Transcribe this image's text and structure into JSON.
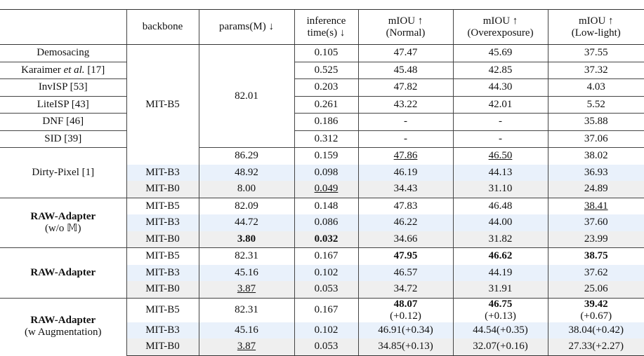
{
  "table": {
    "header": {
      "backbone": "backbone",
      "params": "params(M) ↓",
      "time": [
        "inference",
        "time(s) ↓"
      ],
      "normal": [
        "mIOU ↑",
        "(Normal)"
      ],
      "over": [
        "mIOU ↑",
        "(Overexposure)"
      ],
      "low": [
        "mIOU ↑",
        "(Low-light)"
      ]
    },
    "rows": [
      {
        "method": "Demosacing",
        "backbone": "MIT-B5",
        "params": "82.01",
        "time": "0.105",
        "normal": "47.47",
        "over": "45.69",
        "low": "37.55"
      },
      {
        "method": [
          "Karaimer ",
          "et al.",
          " [17]"
        ],
        "time": "0.525",
        "normal": "45.48",
        "over": "42.85",
        "low": "37.32"
      },
      {
        "method": "InvISP [53]",
        "time": "0.203",
        "normal": "47.82",
        "over": "44.30",
        "low": "4.03"
      },
      {
        "method": "LiteISP [43]",
        "time": "0.261",
        "normal": "43.22",
        "over": "42.01",
        "low": "5.52"
      },
      {
        "method": "DNF [46]",
        "time": "0.186",
        "normal": "-",
        "over": "-",
        "low": "35.88"
      },
      {
        "method": "SID [39]",
        "time": "0.312",
        "normal": "-",
        "over": "-",
        "low": "37.06"
      },
      {
        "method": "Dirty-Pixel [1]",
        "params": "86.29",
        "time": "0.159",
        "normal": "47.86",
        "over": "46.50",
        "low": "38.02"
      },
      {
        "backbone": "MIT-B3",
        "params": "48.92",
        "time": "0.098",
        "normal": "46.19",
        "over": "44.13",
        "low": "36.93"
      },
      {
        "backbone": "MIT-B0",
        "params": "8.00",
        "time": "0.049",
        "normal": "34.43",
        "over": "31.10",
        "low": "24.89"
      },
      {
        "method": [
          "RAW-Adapter",
          "(w/o 𝕄)"
        ],
        "backbone": "MIT-B5",
        "params": "82.09",
        "time": "0.148",
        "normal": "47.83",
        "over": "46.48",
        "low": "38.41"
      },
      {
        "backbone": "MIT-B3",
        "params": "44.72",
        "time": "0.086",
        "normal": "46.22",
        "over": "44.00",
        "low": "37.60"
      },
      {
        "backbone": "MIT-B0",
        "params": "3.80",
        "time": "0.032",
        "normal": "34.66",
        "over": "31.82",
        "low": "23.99"
      },
      {
        "method": "RAW-Adapter",
        "backbone": "MIT-B5",
        "params": "82.31",
        "time": "0.167",
        "normal": "47.95",
        "over": "46.62",
        "low": "38.75"
      },
      {
        "backbone": "MIT-B3",
        "params": "45.16",
        "time": "0.102",
        "normal": "46.57",
        "over": "44.19",
        "low": "37.62"
      },
      {
        "backbone": "MIT-B0",
        "params": "3.87",
        "time": "0.053",
        "normal": "34.72",
        "over": "31.91",
        "low": "25.06"
      },
      {
        "method": [
          "RAW-Adapter",
          "(w Augmentation)"
        ],
        "backbone": "MIT-B5",
        "params": "82.31",
        "time": "0.167",
        "normal": [
          "48.07",
          "(+0.12)"
        ],
        "over": [
          "46.75",
          "(+0.13)"
        ],
        "low": [
          "39.42",
          "(+0.67)"
        ]
      },
      {
        "backbone": "MIT-B3",
        "params": "45.16",
        "time": "0.102",
        "normal": [
          "46.91",
          "(+0.34)"
        ],
        "over": [
          "44.54",
          "(+0.35)"
        ],
        "low": [
          "38.04",
          "(+0.42)"
        ]
      },
      {
        "backbone": "MIT-B0",
        "params": "3.87",
        "time": "0.053",
        "normal": [
          "34.85",
          "(+0.13)"
        ],
        "over": [
          "32.07",
          "(+0.16)"
        ],
        "low": [
          "27.33",
          "(+2.27)"
        ]
      }
    ]
  }
}
